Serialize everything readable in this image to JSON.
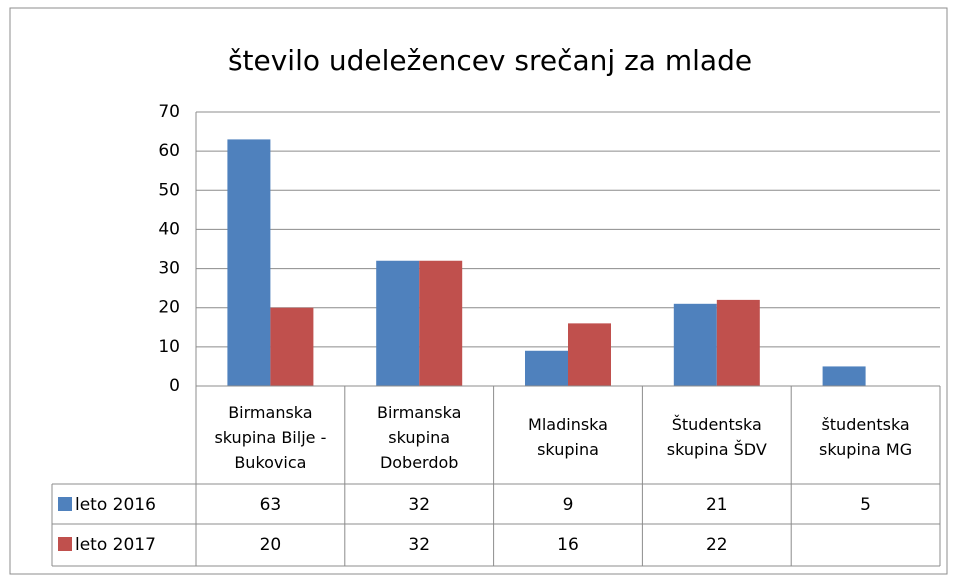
{
  "chart_data": {
    "type": "bar",
    "title": "število udeležencev srečanj za mlade",
    "categories": [
      "Birmanska skupina Bilje - Bukovica",
      "Birmanska skupina Doberdob",
      "Mladinska skupina",
      "Študentska skupina ŠDV",
      "študentska skupina MG"
    ],
    "series": [
      {
        "name": "leto 2016",
        "color": "#4f81bd",
        "values": [
          63,
          32,
          9,
          21,
          5
        ]
      },
      {
        "name": "leto 2017",
        "color": "#c0504d",
        "values": [
          20,
          32,
          16,
          22,
          null
        ]
      }
    ],
    "ylim": [
      0,
      70
    ],
    "yticks": [
      0,
      10,
      20,
      30,
      40,
      50,
      60,
      70
    ],
    "grid": true,
    "data_table": true
  }
}
